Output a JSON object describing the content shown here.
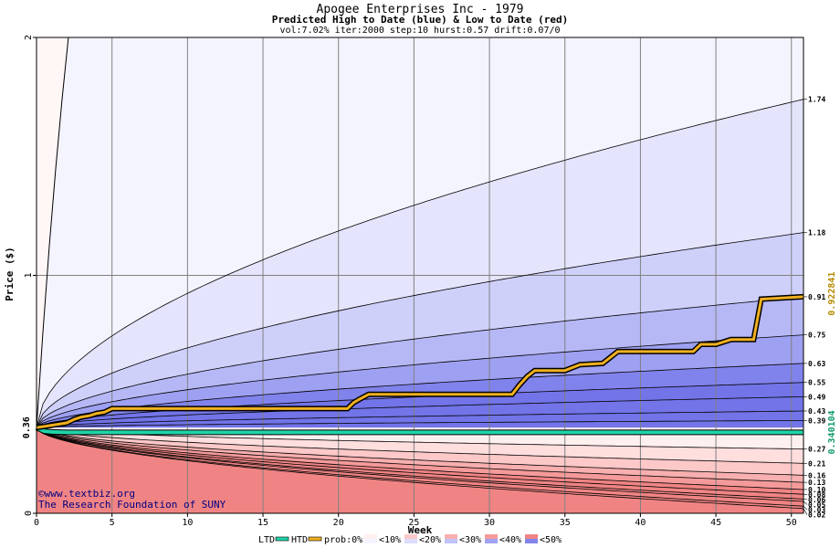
{
  "chart_data": {
    "type": "area",
    "title": "Apogee Enterprises Inc - 1979",
    "subtitle": "Predicted High to Date (blue) &  Low to Date (red)",
    "params": "vol:7.02% iter:2000 step:10 hurst:0.57 drift:0.07/0",
    "xlabel": "Week",
    "ylabel": "Price ($)",
    "xlim": [
      0,
      50.8
    ],
    "ylim": [
      0,
      2
    ],
    "x_ticks": [
      0,
      5,
      10,
      15,
      20,
      25,
      30,
      35,
      40,
      45,
      50
    ],
    "x_tick_labels": [
      "0",
      "5",
      "10",
      "15",
      "20",
      "25",
      "30",
      "35",
      "40",
      "45",
      "50"
    ],
    "y_ticks": [
      0,
      1,
      2
    ],
    "y_tick_labels": [
      "0",
      "1",
      "2"
    ],
    "start_price": 0.36,
    "start_label": "0.36",
    "grid": true,
    "colors": {
      "plot_bg": "#fff6f6",
      "blue_bands": [
        "#f4f4ff",
        "#e4e4fc",
        "#cfd0fa",
        "#b6b8f6",
        "#9ea0f1",
        "#8183ec",
        "#7274e8"
      ],
      "red_bands": [
        "#fff0f0",
        "#ffdede",
        "#fcc8c8",
        "#f8afaf",
        "#f59a9a",
        "#f08484"
      ],
      "ltd": "#20d4a8",
      "htd": "#f0b020",
      "right_gold": "#b58a00",
      "right_green": "#0e9a6e",
      "copyright": "#000080"
    },
    "high_quantiles": {
      "values_at_end": [
        1.74,
        1.18,
        0.91,
        0.75,
        0.63,
        0.55,
        0.49,
        0.43,
        0.39
      ],
      "labels": [
        "1.74",
        "1.18",
        "0.91",
        "0.75",
        "0.63",
        "0.55",
        "0.49",
        "0.43",
        "0.39"
      ]
    },
    "low_quantiles": {
      "values_at_end": [
        0.27,
        0.21,
        0.16,
        0.13,
        0.1,
        0.08,
        0.06,
        0.05,
        0.03,
        0.02
      ],
      "labels": [
        "0.27",
        "0.21",
        "0.16",
        "0.13",
        "0.10",
        "0.08",
        "0.06",
        "0.05",
        "0.03",
        "0.02"
      ]
    },
    "htd_series": {
      "x": [
        0,
        1,
        2,
        2.5,
        3,
        3.5,
        4,
        4.5,
        5,
        20.6,
        21,
        21.4,
        22,
        31.5,
        32,
        32.5,
        33,
        35,
        36,
        37.5,
        38.5,
        43.5,
        44,
        45,
        46,
        47.5,
        48,
        50.8
      ],
      "y": [
        0.36,
        0.37,
        0.38,
        0.395,
        0.405,
        0.41,
        0.42,
        0.425,
        0.44,
        0.44,
        0.465,
        0.48,
        0.5,
        0.5,
        0.54,
        0.575,
        0.6,
        0.6,
        0.625,
        0.63,
        0.68,
        0.68,
        0.71,
        0.71,
        0.73,
        0.73,
        0.9,
        0.91
      ]
    },
    "ltd_series": {
      "x": [
        0,
        0.5,
        1,
        2,
        50.8
      ],
      "y": [
        0.36,
        0.345,
        0.342,
        0.3401,
        0.3401
      ]
    },
    "right_markers": [
      {
        "label": "0.922841",
        "value": 0.922841,
        "color": "gold"
      },
      {
        "label": "0.340104",
        "value": 0.340104,
        "color": "green"
      }
    ],
    "legend": {
      "items": [
        {
          "label": "LTD",
          "swatch": "line",
          "color": "#20d4a8"
        },
        {
          "label": "HTD",
          "swatch": "line",
          "color": "#f0b020"
        },
        {
          "label": "prob:0%",
          "swatch": "none"
        },
        {
          "label": "<10%",
          "swatch": "band",
          "colors": [
            "#fff0f0",
            "#f4f4ff"
          ]
        },
        {
          "label": "<20%",
          "swatch": "band",
          "colors": [
            "#fcc8c8",
            "#dcdcfc"
          ]
        },
        {
          "label": "<30%",
          "swatch": "band",
          "colors": [
            "#f8afaf",
            "#c0c2f8"
          ]
        },
        {
          "label": "<40%",
          "swatch": "band",
          "colors": [
            "#f59a9a",
            "#a0a2f2"
          ]
        },
        {
          "label": "<50%",
          "swatch": "band",
          "colors": [
            "#f08484",
            "#8385ec"
          ]
        }
      ]
    },
    "copyright": [
      "©www.textbiz.org",
      "The Research Foundation of SUNY"
    ]
  }
}
